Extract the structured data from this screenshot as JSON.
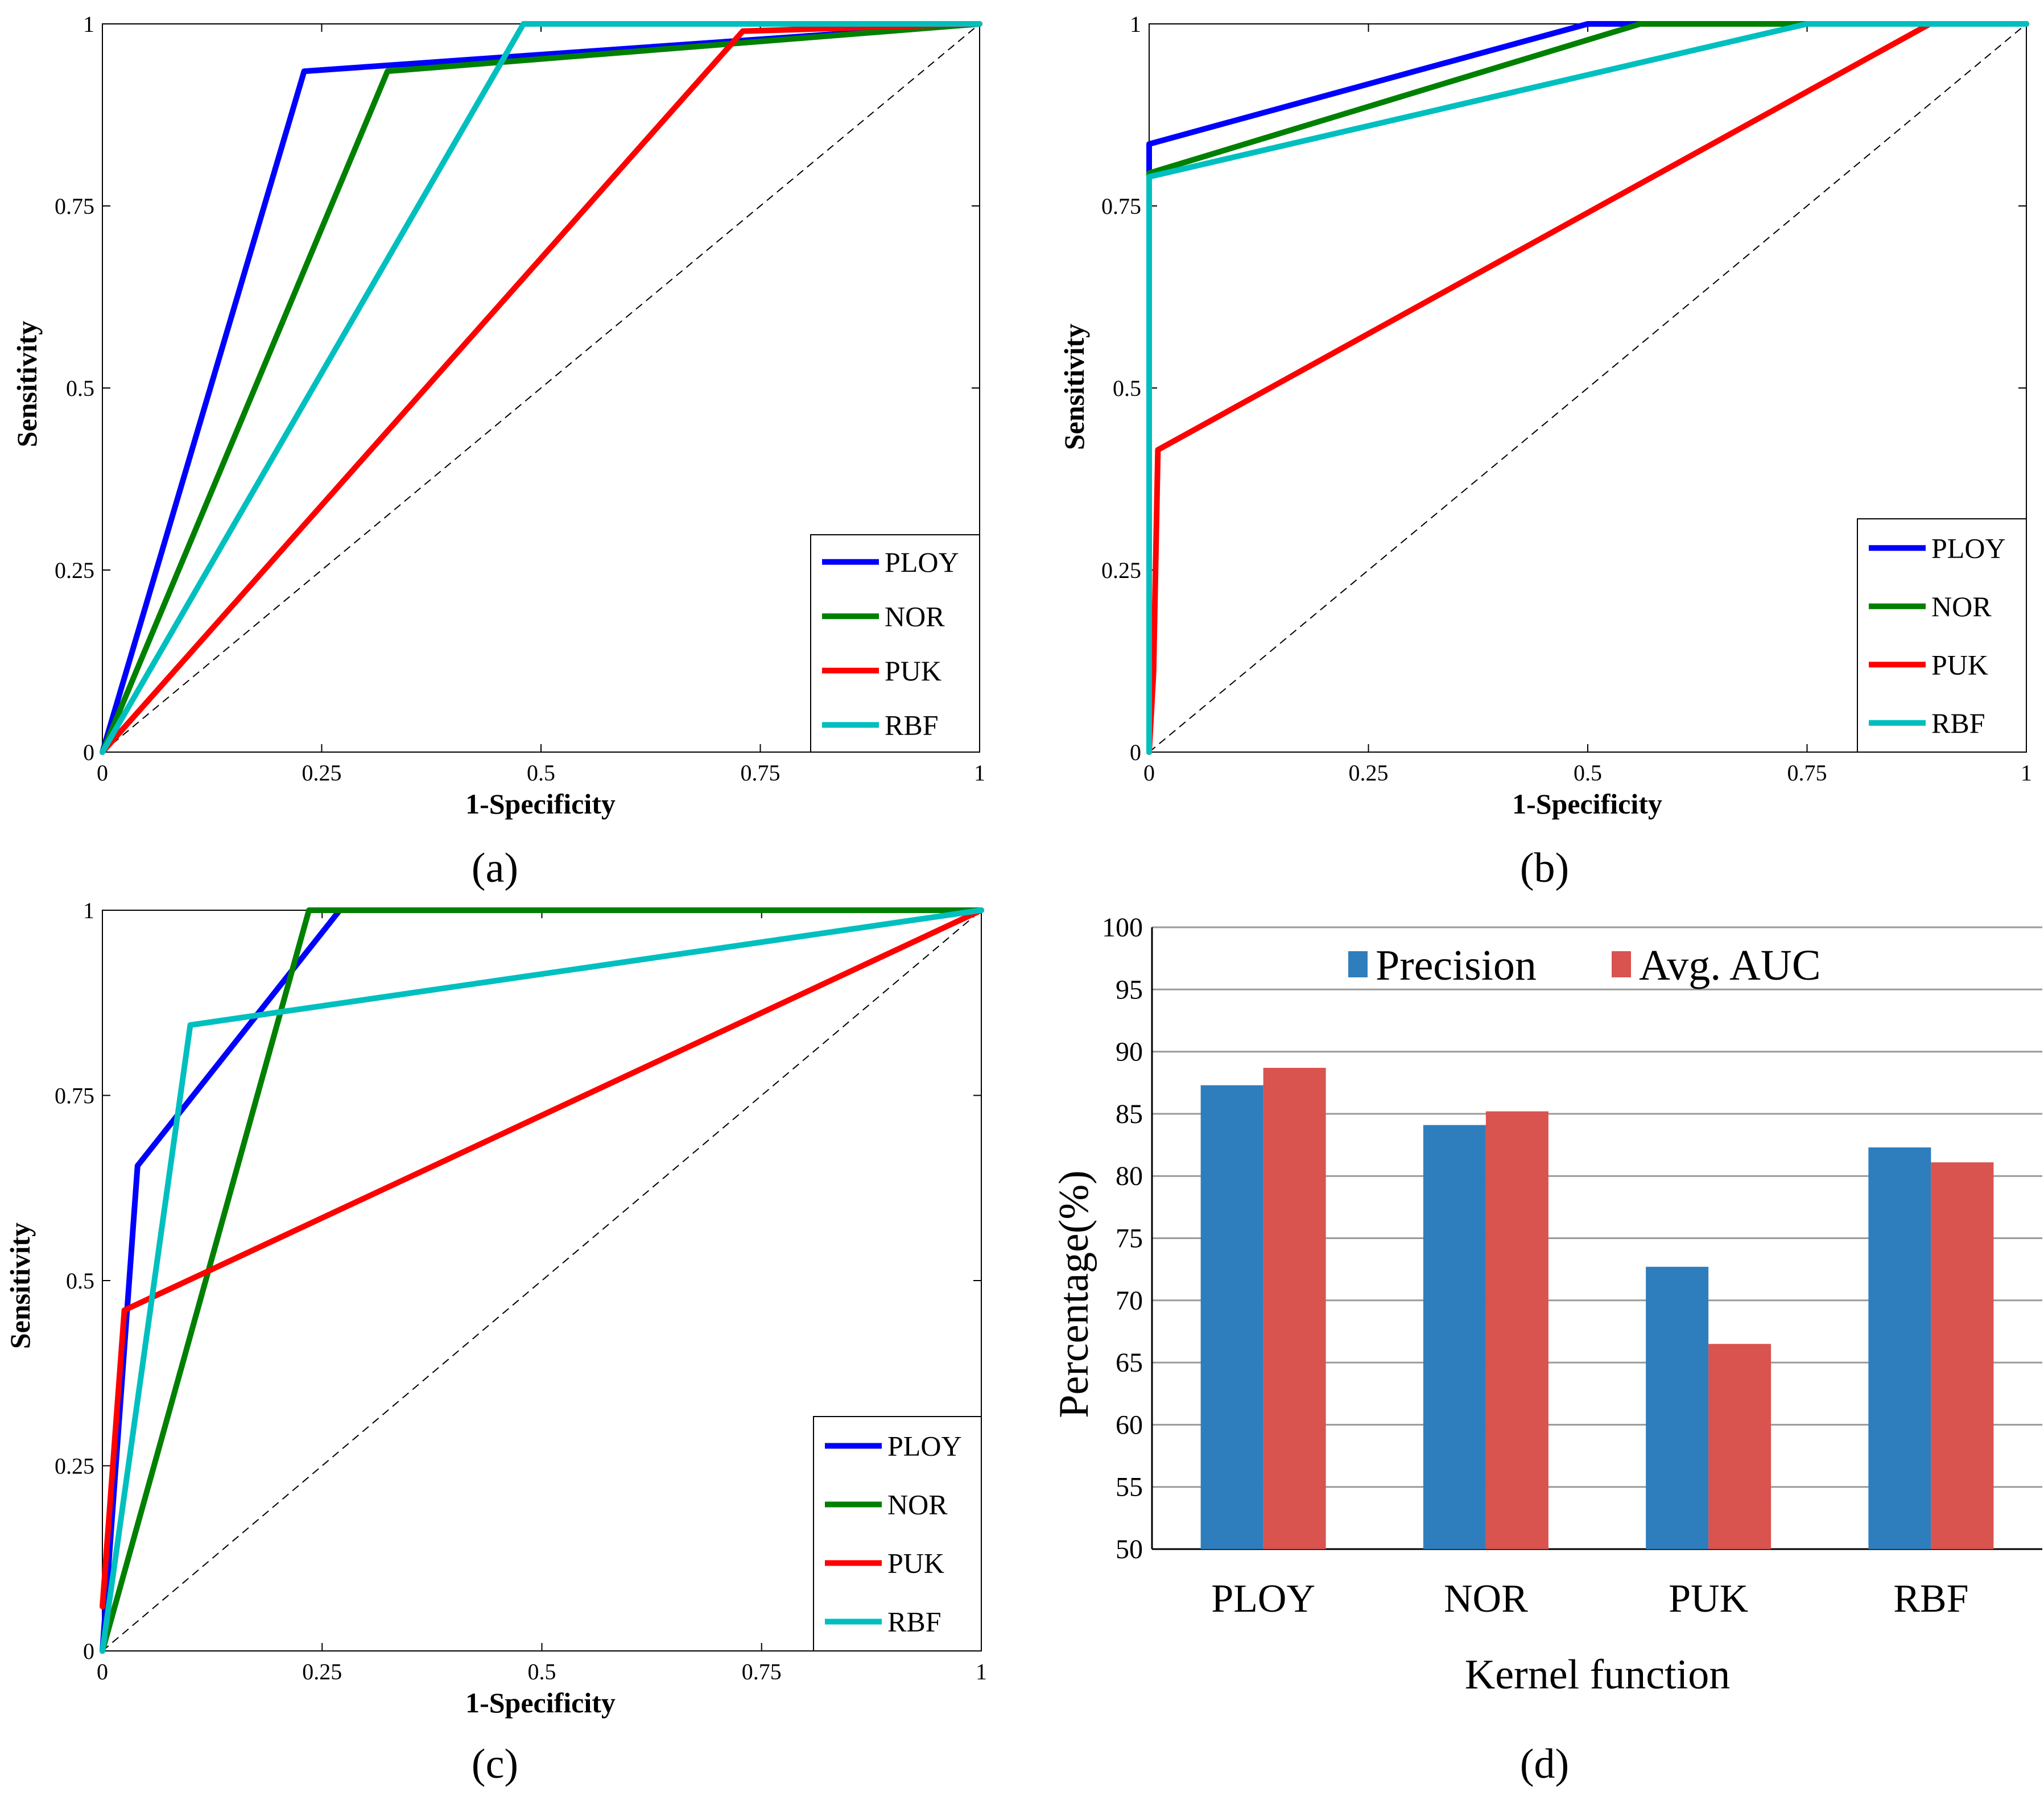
{
  "colors": {
    "PLOY": "#0000ff",
    "NOR": "#008000",
    "PUK": "#ff0000",
    "RBF": "#00bfbf",
    "precision": "#2e7ebd",
    "avg_auc": "#d9534f"
  },
  "chart_data": [
    {
      "type": "line",
      "panel_label": "(a)",
      "xlabel": "1-Specificity",
      "ylabel": "Sensitivity",
      "xlim": [
        0,
        1
      ],
      "ylim": [
        0,
        1
      ],
      "xticks": [
        0,
        0.25,
        0.5,
        0.75,
        1
      ],
      "yticks": [
        0,
        0.25,
        0.5,
        0.75,
        1
      ],
      "xtick_labels": [
        "0",
        "0.25",
        "0.5",
        "0.75",
        "1"
      ],
      "ytick_labels": [
        "0",
        "0.25",
        "0.5",
        "0.75",
        "1"
      ],
      "legend_position": "bottom-right",
      "diagonal_reference": true,
      "series": [
        {
          "name": "PLOY",
          "x": [
            0,
            0.23,
            1
          ],
          "y": [
            0,
            0.935,
            1
          ]
        },
        {
          "name": "NOR",
          "x": [
            0,
            0.325,
            1
          ],
          "y": [
            0,
            0.935,
            1
          ]
        },
        {
          "name": "PUK",
          "x": [
            0,
            0.73,
            1
          ],
          "y": [
            0,
            0.99,
            1
          ]
        },
        {
          "name": "RBF",
          "x": [
            0,
            0.48,
            1
          ],
          "y": [
            0,
            1,
            1
          ]
        }
      ]
    },
    {
      "type": "line",
      "panel_label": "(b)",
      "xlabel": "1-Specificity",
      "ylabel": "Sensitivity",
      "xlim": [
        0,
        1
      ],
      "ylim": [
        0,
        1
      ],
      "xticks": [
        0,
        0.25,
        0.5,
        0.75,
        1
      ],
      "yticks": [
        0,
        0.25,
        0.5,
        0.75,
        1
      ],
      "xtick_labels": [
        "0",
        "0.25",
        "0.5",
        "0.75",
        "1"
      ],
      "ytick_labels": [
        "0",
        "0.25",
        "0.5",
        "0.75",
        "1"
      ],
      "legend_position": "bottom-right",
      "diagonal_reference": true,
      "series": [
        {
          "name": "PLOY",
          "x": [
            0,
            0,
            0.5,
            1
          ],
          "y": [
            0,
            0.835,
            1,
            1
          ]
        },
        {
          "name": "NOR",
          "x": [
            0,
            0,
            0.56,
            1
          ],
          "y": [
            0,
            0.795,
            1,
            1
          ]
        },
        {
          "name": "PUK",
          "x": [
            0,
            0.005,
            0.01,
            0.89,
            1
          ],
          "y": [
            0,
            0.11,
            0.415,
            1,
            1
          ]
        },
        {
          "name": "RBF",
          "x": [
            0,
            0,
            0.75,
            1
          ],
          "y": [
            0,
            0.79,
            1,
            1
          ]
        }
      ]
    },
    {
      "type": "line",
      "panel_label": "(c)",
      "xlabel": "1-Specificity",
      "ylabel": "Sensitivity",
      "xlim": [
        0,
        1
      ],
      "ylim": [
        0,
        1
      ],
      "xticks": [
        0,
        0.25,
        0.5,
        0.75,
        1
      ],
      "yticks": [
        0,
        0.25,
        0.5,
        0.75,
        1
      ],
      "xtick_labels": [
        "0",
        "0.25",
        "0.5",
        "0.75",
        "1"
      ],
      "ytick_labels": [
        "0",
        "0.25",
        "0.5",
        "0.75",
        "1"
      ],
      "legend_position": "bottom-right",
      "diagonal_reference": true,
      "series": [
        {
          "name": "PLOY",
          "x": [
            0,
            0.04,
            0.27,
            1
          ],
          "y": [
            0,
            0.655,
            1,
            1
          ]
        },
        {
          "name": "NOR",
          "x": [
            0,
            0.235,
            1
          ],
          "y": [
            0,
            1,
            1
          ]
        },
        {
          "name": "PUK",
          "x": [
            0,
            0.025,
            1
          ],
          "y": [
            0.06,
            0.46,
            1
          ]
        },
        {
          "name": "RBF",
          "x": [
            0,
            0.1,
            1
          ],
          "y": [
            0,
            0.845,
            1
          ]
        }
      ]
    },
    {
      "type": "bar",
      "panel_label": "(d)",
      "xlabel": "Kernel function",
      "ylabel": "Percentage(%)",
      "ylim": [
        50,
        100
      ],
      "yticks": [
        50,
        55,
        60,
        65,
        70,
        75,
        80,
        85,
        90,
        95,
        100
      ],
      "ytick_labels": [
        "50",
        "55",
        "60",
        "65",
        "70",
        "75",
        "80",
        "85",
        "90",
        "95",
        "100"
      ],
      "grid": true,
      "legend_position": "top",
      "categories": [
        "PLOY",
        "NOR",
        "PUK",
        "RBF"
      ],
      "series": [
        {
          "name": "Precision",
          "values": [
            87.3,
            84.1,
            72.7,
            82.3
          ]
        },
        {
          "name": "Avg. AUC",
          "values": [
            88.7,
            85.2,
            66.5,
            81.1
          ]
        }
      ]
    }
  ]
}
